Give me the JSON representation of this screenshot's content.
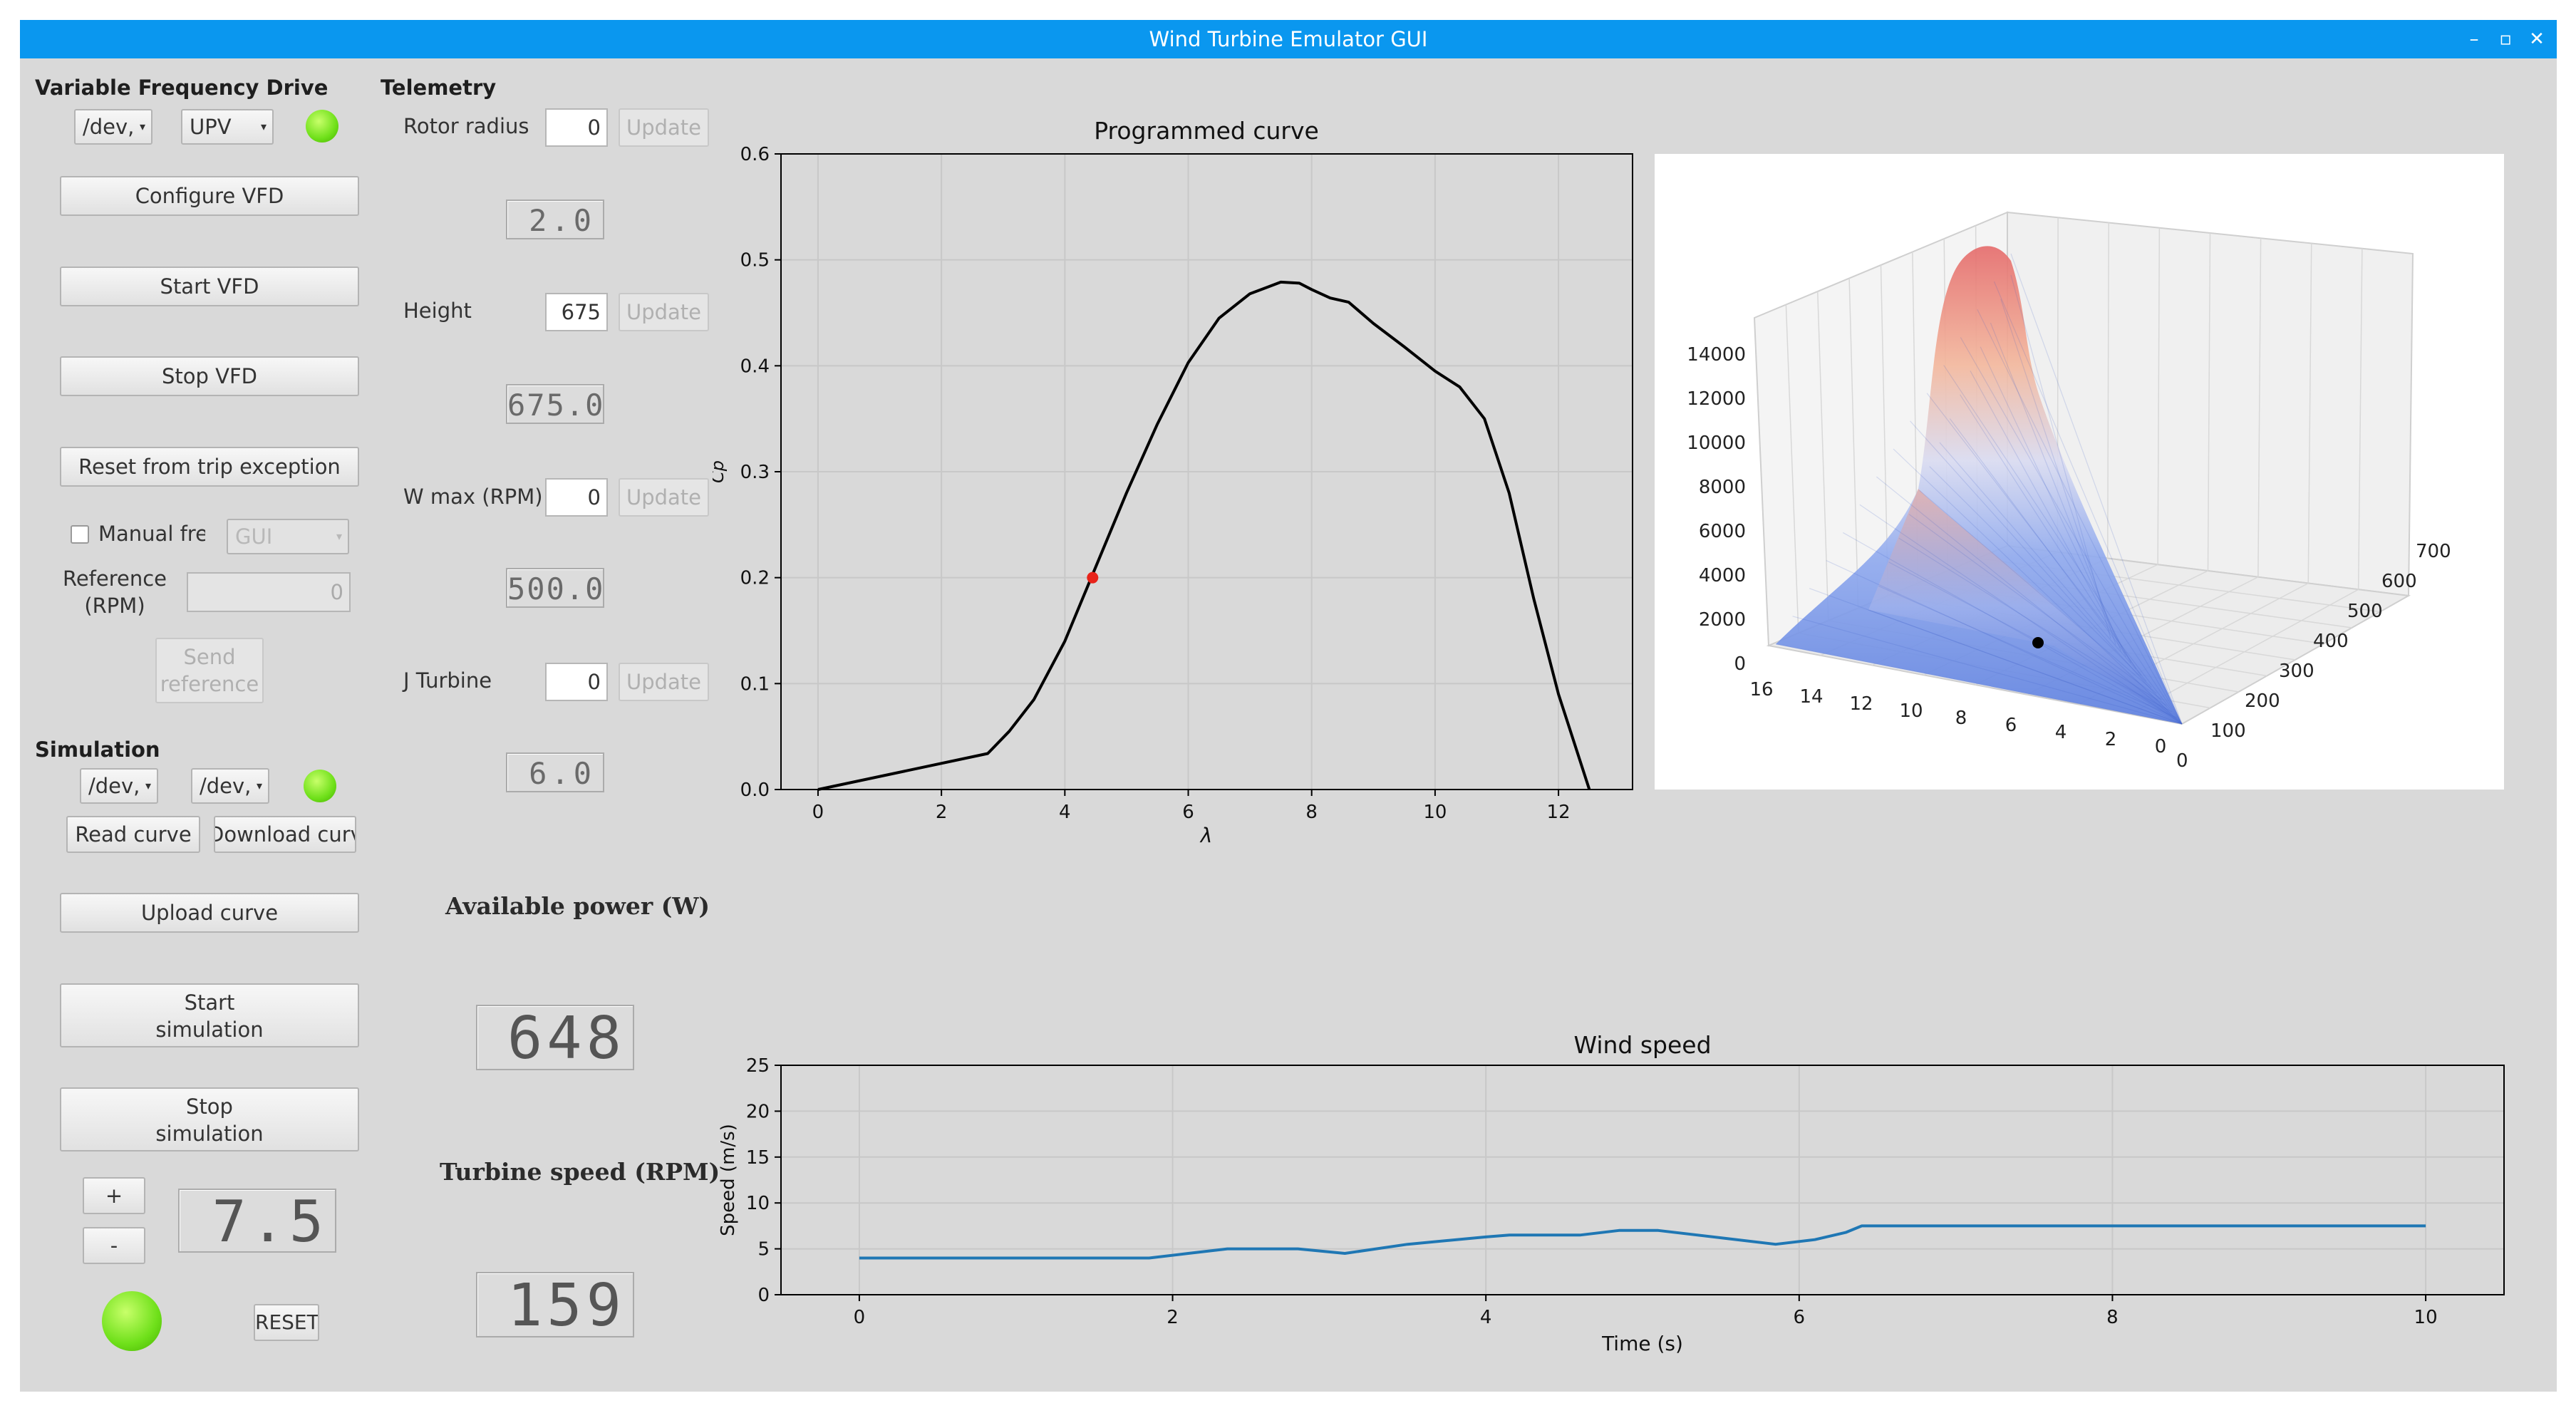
{
  "window": {
    "title": "Wind Turbine Emulator GUI",
    "controls": [
      "–",
      "▫",
      "✕"
    ]
  },
  "vfd": {
    "title": "Variable Frequency Drive",
    "port_select": "/dev,",
    "protocol_select": "UPV",
    "configure": "Configure VFD",
    "start": "Start VFD",
    "stop": "Stop VFD",
    "reset_trip": "Reset from trip exception",
    "manual_freq_label": "Manual frec",
    "manual_source": "GUI",
    "reference_label": "Reference\n(RPM)",
    "reference_value": "0",
    "send_reference": "Send\nreference"
  },
  "simulation": {
    "title": "Simulation",
    "port_a": "/dev,",
    "port_b": "/dev,",
    "read_curve": "Read curve",
    "download_curve": "Download curve",
    "upload_curve": "Upload curve",
    "start": "Start\nsimulation",
    "stop": "Stop\nsimulation",
    "plus": "+",
    "minus": "-",
    "wind_display": "7.5",
    "reset": "RESET"
  },
  "telemetry": {
    "title": "Telemetry",
    "update_label": "Update",
    "params": [
      {
        "label": "Rotor radius",
        "input": "0",
        "display": "2.0"
      },
      {
        "label": "Height",
        "input": "675",
        "display": "675.0"
      },
      {
        "label": "W max (RPM)",
        "input": "0",
        "display": "500.0"
      },
      {
        "label": "J Turbine",
        "input": "0",
        "display": "6.0"
      }
    ],
    "available_power_title": "Available power (W)",
    "available_power_value": "648",
    "turbine_speed_title": "Turbine speed (RPM)",
    "turbine_speed_value": "159"
  },
  "surface_plot": {
    "z_ticks": [
      "14000",
      "12000",
      "10000",
      "8000",
      "6000",
      "4000",
      "2000",
      "0"
    ],
    "x_ticks": [
      "16",
      "14",
      "12",
      "10",
      "8",
      "6",
      "4",
      "2",
      "0"
    ],
    "y_ticks": [
      "0",
      "100",
      "200",
      "300",
      "400",
      "500",
      "600",
      "700"
    ]
  },
  "chart_data": [
    {
      "type": "line",
      "title": "Programmed curve",
      "xlabel": "λ",
      "ylabel": "Cp",
      "xlim": [
        -0.6,
        13.2
      ],
      "ylim": [
        0,
        0.6
      ],
      "xticks": [
        "0",
        "2",
        "4",
        "6",
        "8",
        "10",
        "12"
      ],
      "yticks": [
        "0.0",
        "0.1",
        "0.2",
        "0.3",
        "0.4",
        "0.5",
        "0.6"
      ],
      "grid": true,
      "series": [
        {
          "color": "#000000",
          "x": [
            0,
            2.75,
            3.1,
            3.5,
            4.0,
            4.5,
            5.0,
            5.5,
            6.0,
            6.5,
            7.0,
            7.5,
            7.8,
            8.0,
            8.3,
            8.6,
            9.0,
            9.5,
            10.0,
            10.4,
            10.8,
            11.2,
            11.6,
            12.0,
            12.5
          ],
          "y": [
            0.0,
            0.034,
            0.055,
            0.085,
            0.14,
            0.21,
            0.28,
            0.345,
            0.403,
            0.445,
            0.468,
            0.479,
            0.478,
            0.472,
            0.464,
            0.46,
            0.44,
            0.418,
            0.395,
            0.38,
            0.35,
            0.28,
            0.18,
            0.09,
            0.0
          ]
        }
      ],
      "marker": {
        "x": 4.45,
        "y": 0.2,
        "color": "#e8231a"
      }
    },
    {
      "type": "line",
      "title": "Wind speed",
      "xlabel": "Time (s)",
      "ylabel": "Speed (m/s)",
      "xlim": [
        -0.5,
        10.5
      ],
      "ylim": [
        0,
        25
      ],
      "xticks": [
        "0",
        "2",
        "4",
        "6",
        "8",
        "10"
      ],
      "yticks": [
        "0",
        "5",
        "10",
        "15",
        "20",
        "25"
      ],
      "grid": true,
      "series": [
        {
          "color": "#1f77b4",
          "x": [
            0,
            1.85,
            2.1,
            2.35,
            2.8,
            3.1,
            3.5,
            4.0,
            4.15,
            4.6,
            4.85,
            5.1,
            5.5,
            5.85,
            6.1,
            6.3,
            6.4,
            6.8,
            7.5,
            8.5,
            10.0
          ],
          "y": [
            4.0,
            4.0,
            4.5,
            5.0,
            5.0,
            4.5,
            5.5,
            6.3,
            6.5,
            6.5,
            7.0,
            7.0,
            6.2,
            5.5,
            6.0,
            6.8,
            7.5,
            7.5,
            7.5,
            7.5,
            7.5
          ]
        }
      ]
    }
  ]
}
